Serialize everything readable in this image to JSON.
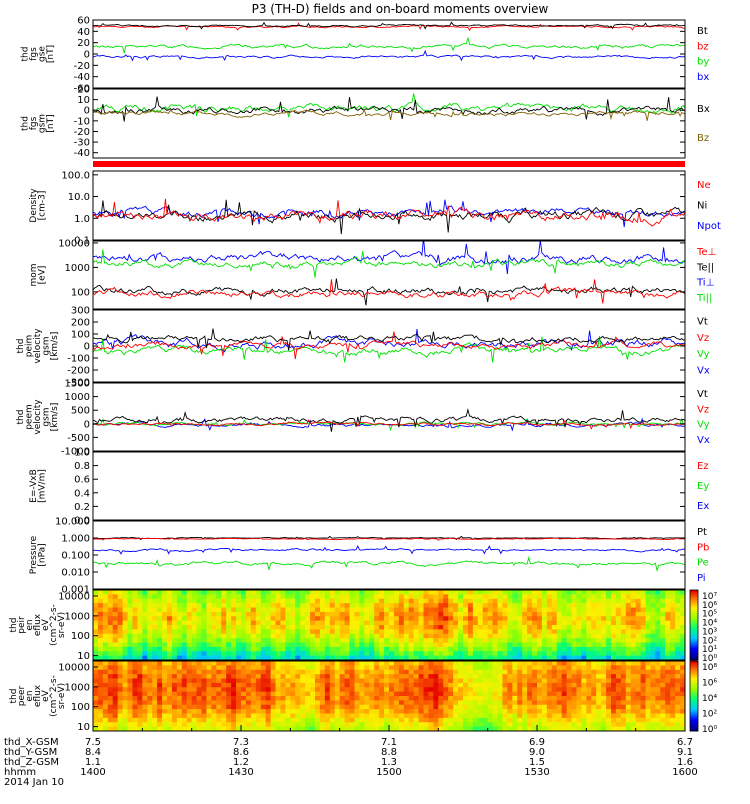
{
  "title": "P3 (TH-D) fields and on-board moments overview",
  "colors": {
    "black": "#000000",
    "red": "#ff0000",
    "green": "#00e000",
    "blue": "#0000ff",
    "olive": "#806000",
    "orange": "#c08000"
  },
  "chart_data": {
    "type": "line",
    "x_range": [
      "14:00",
      "16:00"
    ],
    "x_ticks": [
      "1400",
      "1430",
      "1500",
      "1530",
      "1600"
    ],
    "ephemeris": {
      "labels": [
        "thd_X-GSM",
        "thd_Y-GSM",
        "thd_Z-GSM",
        "hhmm",
        "2014 Jan 10"
      ],
      "rows": [
        [
          "7.5",
          "7.3",
          "7.1",
          "6.9",
          "6.7"
        ],
        [
          "8.4",
          "8.6",
          "8.8",
          "9.0",
          "9.1"
        ],
        [
          "1.1",
          "1.2",
          "1.3",
          "1.5",
          "1.6"
        ],
        [
          "1400",
          "1430",
          "1500",
          "1530",
          "1600"
        ]
      ]
    },
    "panels": [
      {
        "id": "fgs_gse",
        "ylabel": [
          "thd",
          "fgs",
          "gse",
          "[nT]"
        ],
        "ylim": [
          -60,
          60
        ],
        "scale": "linear",
        "yticks": [
          "60",
          "40",
          "20",
          "0",
          "-20",
          "-40",
          "-60"
        ],
        "tick_values": [
          60,
          40,
          20,
          0,
          -20,
          -40,
          -60
        ],
        "grid": false,
        "legend": [
          {
            "text": "Bt",
            "color": "#000000"
          },
          {
            "text": "bz",
            "color": "#ff0000"
          },
          {
            "text": "by",
            "color": "#00e000"
          },
          {
            "text": "bx",
            "color": "#0000ff"
          }
        ],
        "series": [
          {
            "color": "#ff0000",
            "base": 48,
            "amp": 3,
            "seed": 11
          },
          {
            "color": "#000000",
            "base": 50,
            "amp": 3,
            "seed": 12
          },
          {
            "color": "#00e000",
            "base": 13,
            "amp": 6,
            "seed": 13
          },
          {
            "color": "#0000ff",
            "base": -5,
            "amp": 4,
            "seed": 14
          }
        ]
      },
      {
        "id": "fgs_gsm",
        "ylabel": [
          "thd",
          "fgs",
          "gsm",
          "[nT]"
        ],
        "ylim": [
          -45,
          20
        ],
        "scale": "linear",
        "yticks": [
          "20",
          "10",
          "0",
          "-10",
          "-20",
          "-30",
          "-40"
        ],
        "tick_values": [
          20,
          10,
          0,
          -10,
          -20,
          -30,
          -40
        ],
        "grid": false,
        "legend": [
          {
            "text": "Bx",
            "color": "#000000"
          },
          {
            "text": "Bz",
            "color": "#806000"
          }
        ],
        "series": [
          {
            "color": "#00e000",
            "base": 2,
            "amp": 7,
            "seed": 21
          },
          {
            "color": "#000000",
            "base": 0,
            "amp": 6,
            "seed": 22
          },
          {
            "color": "#806000",
            "base": -3,
            "amp": 4,
            "seed": 23
          }
        ]
      },
      {
        "id": "density",
        "ylabel": [
          "Density",
          "[cm-3]"
        ],
        "ylim": [
          0.1,
          150
        ],
        "scale": "log",
        "yticks": [
          "100.0",
          "10.0",
          "1.0",
          "0.1"
        ],
        "tick_values": [
          100,
          10,
          1,
          0.1
        ],
        "grid": false,
        "legend": [
          {
            "text": "Ne",
            "color": "#ff0000"
          },
          {
            "text": "Ni",
            "color": "#000000"
          },
          {
            "text": "Npot",
            "color": "#0000ff"
          }
        ],
        "series": [
          {
            "color": "#0000ff",
            "base": 0.25,
            "amp": 0.35,
            "seed": 31
          },
          {
            "color": "#000000",
            "base": 0.15,
            "amp": 0.45,
            "seed": 32
          },
          {
            "color": "#ff0000",
            "base": 0.12,
            "amp": 0.45,
            "seed": 33
          }
        ]
      },
      {
        "id": "moms_temp",
        "ylabel": [
          "mom",
          "[eV]"
        ],
        "ylim": [
          20,
          12000
        ],
        "scale": "log",
        "yticks": [
          "10000",
          "1000",
          "100"
        ],
        "tick_values": [
          10000,
          1000,
          100
        ],
        "grid": false,
        "legend": [
          {
            "text": "Te⊥",
            "color": "#ff0000"
          },
          {
            "text": "Te||",
            "color": "#000000"
          },
          {
            "text": "Ti⊥",
            "color": "#0000ff"
          },
          {
            "text": "Ti||",
            "color": "#00e000"
          }
        ],
        "series": [
          {
            "color": "#0000ff",
            "base": 3.35,
            "amp": 0.35,
            "seed": 41
          },
          {
            "color": "#00e000",
            "base": 3.15,
            "amp": 0.3,
            "seed": 42
          },
          {
            "color": "#000000",
            "base": 2.05,
            "amp": 0.3,
            "seed": 43
          },
          {
            "color": "#ff0000",
            "base": 1.95,
            "amp": 0.3,
            "seed": 44
          }
        ]
      },
      {
        "id": "peim_velocity",
        "ylabel": [
          "thd",
          "peim",
          "velocity",
          "gsm",
          "[km/s]"
        ],
        "ylim": [
          -300,
          300
        ],
        "scale": "linear",
        "yticks": [
          "300",
          "200",
          "100",
          "0",
          "-100",
          "-200",
          "-300"
        ],
        "tick_values": [
          300,
          200,
          100,
          0,
          -100,
          -200,
          -300
        ],
        "grid": false,
        "legend": [
          {
            "text": "Vt",
            "color": "#000000"
          },
          {
            "text": "Vz",
            "color": "#ff0000"
          },
          {
            "text": "Vy",
            "color": "#00e000"
          },
          {
            "text": "Vx",
            "color": "#0000ff"
          }
        ],
        "series": [
          {
            "color": "#0000ff",
            "base": 20,
            "amp": 70,
            "seed": 51
          },
          {
            "color": "#00e000",
            "base": -40,
            "amp": 60,
            "seed": 52
          },
          {
            "color": "#ff0000",
            "base": 10,
            "amp": 50,
            "seed": 53
          },
          {
            "color": "#000000",
            "base": 60,
            "amp": 50,
            "seed": 54
          }
        ]
      },
      {
        "id": "peem_velocity",
        "ylabel": [
          "thd",
          "peem",
          "velocity",
          "gsm",
          "[km/s]"
        ],
        "ylim": [
          -1000,
          1500
        ],
        "scale": "linear",
        "yticks": [
          "1500",
          "1000",
          "500",
          "0",
          "-500",
          "-1000"
        ],
        "tick_values": [
          1500,
          1000,
          500,
          0,
          -500,
          -1000
        ],
        "grid": false,
        "legend": [
          {
            "text": "Vt",
            "color": "#000000"
          },
          {
            "text": "Vz",
            "color": "#ff0000"
          },
          {
            "text": "Vy",
            "color": "#00e000"
          },
          {
            "text": "Vx",
            "color": "#0000ff"
          }
        ],
        "series": [
          {
            "color": "#0000ff",
            "base": -50,
            "amp": 120,
            "seed": 61
          },
          {
            "color": "#00e000",
            "base": 0,
            "amp": 90,
            "seed": 62
          },
          {
            "color": "#000000",
            "base": 150,
            "amp": 180,
            "seed": 63
          },
          {
            "color": "#ff0000",
            "base": 0,
            "amp": 80,
            "seed": 64
          }
        ]
      },
      {
        "id": "efield",
        "ylabel": [
          "E=-VxB",
          "[mV/m]"
        ],
        "ylim": [
          0,
          1
        ],
        "scale": "linear",
        "yticks": [
          "1.0",
          "0.8",
          "0.6",
          "0.4",
          "0.2",
          "0.0"
        ],
        "tick_values": [
          1.0,
          0.8,
          0.6,
          0.4,
          0.2,
          0.0
        ],
        "grid": false,
        "legend": [
          {
            "text": "Ez",
            "color": "#ff0000"
          },
          {
            "text": "Ey",
            "color": "#00e000"
          },
          {
            "text": "Ex",
            "color": "#0000ff"
          }
        ],
        "series": []
      },
      {
        "id": "pressure",
        "ylabel": [
          "Pressure",
          "[nPa]"
        ],
        "ylim": [
          0.001,
          10
        ],
        "scale": "log",
        "yticks": [
          "10.000",
          "1.000",
          "0.100",
          "0.010",
          "0.001"
        ],
        "tick_values": [
          10,
          1,
          0.1,
          0.01,
          0.001
        ],
        "grid": false,
        "legend": [
          {
            "text": "Pt",
            "color": "#000000"
          },
          {
            "text": "Pb",
            "color": "#ff0000"
          },
          {
            "text": "Pe",
            "color": "#00e000"
          },
          {
            "text": "Pi",
            "color": "#0000ff"
          }
        ],
        "series": [
          {
            "color": "#000000",
            "base": 0.0,
            "amp": 0.05,
            "seed": 81
          },
          {
            "color": "#ff0000",
            "base": -0.05,
            "amp": 0.04,
            "seed": 82
          },
          {
            "color": "#0000ff",
            "base": -0.7,
            "amp": 0.12,
            "seed": 83
          },
          {
            "color": "#00e000",
            "base": -1.5,
            "amp": 0.2,
            "seed": 84
          }
        ]
      }
    ],
    "spectrograms": [
      {
        "id": "peir",
        "ylabel": [
          "thd",
          "peir",
          "en",
          "eflux",
          "eV",
          "(cm^2-s-",
          "sr-eV)"
        ],
        "yticks": [
          "10000",
          "1000",
          "100",
          "10"
        ],
        "tick_values": [
          10000,
          1000,
          100,
          10
        ],
        "colorbar_ticks": [
          "10⁷",
          "10⁶",
          "10⁵",
          "10⁴",
          "10³",
          "10²",
          "10¹",
          "10⁰"
        ],
        "seed": 91,
        "bias": 0.62
      },
      {
        "id": "peer",
        "ylabel": [
          "thd",
          "peer",
          "en",
          "eflux",
          "eV",
          "(cm^2-s-",
          "sr-eV)"
        ],
        "yticks": [
          "10000",
          "1000",
          "100",
          "10"
        ],
        "tick_values": [
          10000,
          1000,
          100,
          10
        ],
        "colorbar_ticks": [
          "10⁸",
          "10⁶",
          "10⁴",
          "10²",
          "10⁰"
        ],
        "seed": 92,
        "bias": 0.8
      }
    ]
  }
}
